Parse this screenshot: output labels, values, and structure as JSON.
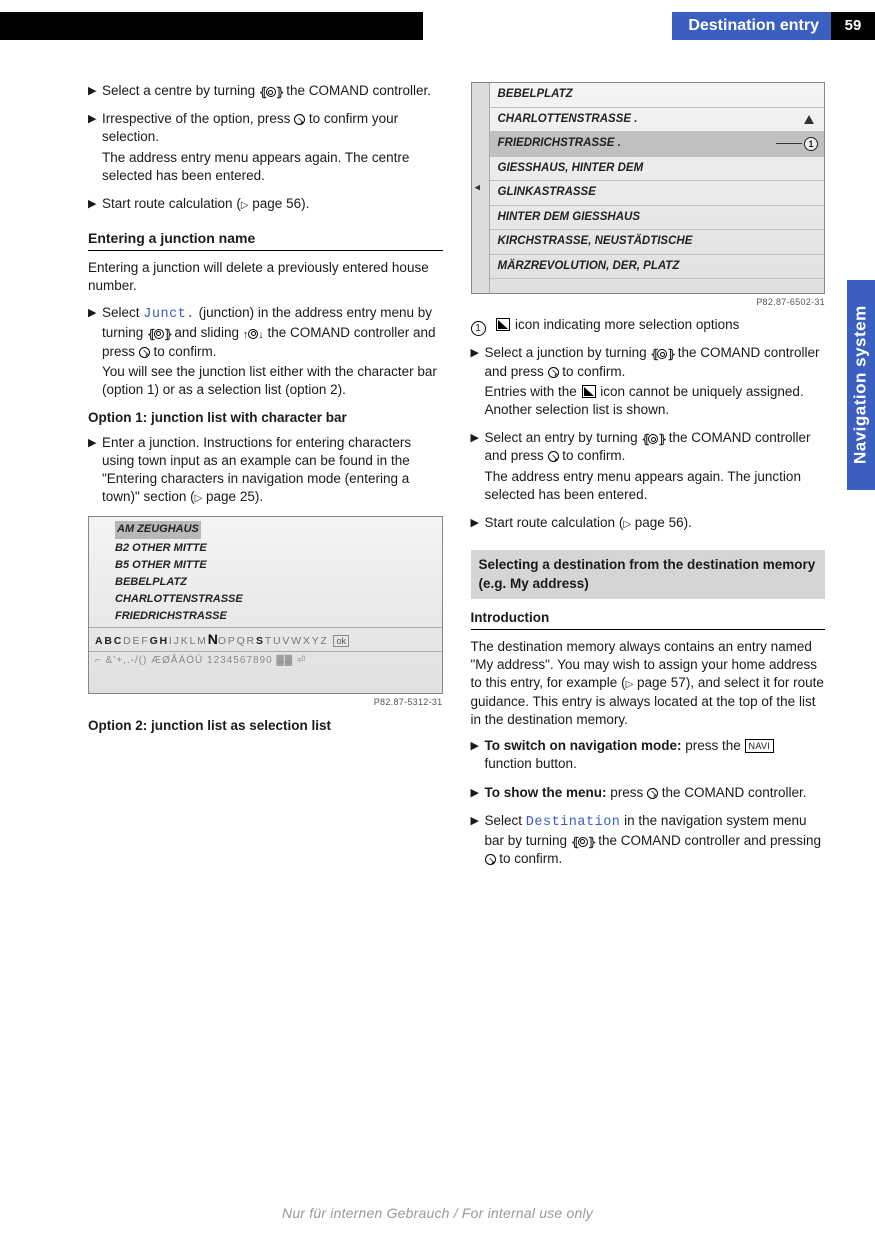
{
  "header": {
    "chapter": "Destination entry",
    "page_number": "59",
    "side_tab": "Navigation system"
  },
  "footer": "Nur für internen Gebrauch / For internal use only",
  "left": {
    "b1": "Select a centre by turning ",
    "b1_after": " the COMAND controller.",
    "b2a": "Irrespective of the option, press ",
    "b2b": " to confirm your selection.",
    "b2c": "The address entry menu appears again. The centre selected has been entered.",
    "b3": "Start route calculation (",
    "b3_pg": " page 56).",
    "h_junction": "Entering a junction name",
    "p_junction": "Entering a junction will delete a previously entered house number.",
    "j1a": "Select ",
    "j1_code": "Junct.",
    "j1b": " (junction) in the address entry menu by turning ",
    "j1c": " and sliding ",
    "j1d": " the COMAND controller and press ",
    "j1e": " to confirm.",
    "j1f": "You will see the junction list either with the character bar (option 1) or as a selection list (option 2).",
    "opt1": "Option 1: junction list with character bar",
    "j2a": "Enter a junction. Instructions for entering characters using town input as an example can be found in the \"Entering characters in navigation mode (entering a town)\" section (",
    "j2b": " page 25).",
    "ss1": {
      "rows": [
        "AM ZEUGHAUS",
        "B2 OTHER MITTE",
        "B5 OTHER MITTE",
        "BEBELPLATZ",
        "CHARLOTTENSTRASSE",
        "FRIEDRICHSTRASSE"
      ],
      "charbar_pre": "ABC",
      "charbar_mid1": "DEF",
      "charbar_g": "GH",
      "charbar_mid2": "IJKLM",
      "charbar_N": "N",
      "charbar_mid3": "OP",
      "charbar_qr": "QR",
      "charbar_s": "S",
      "charbar_tu": "TU",
      "charbar_rest": "VWXYZ",
      "charbar_ok": "ok",
      "inputrow": "⌐ &'+,.-/() ÆØÅÄÖÜ 1234567890 ▓▓ ⏎",
      "caption": "P82.87-5312-31"
    },
    "opt2": "Option 2: junction list as selection list"
  },
  "right": {
    "ss2": {
      "rows": [
        {
          "t": "BEBELPLATZ"
        },
        {
          "t": "CHARLOTTENSTRASSE .",
          "tri": true
        },
        {
          "t": "FRIEDRICHSTRASSE .",
          "hl": true,
          "badge": true
        },
        {
          "t": "GIESSHAUS, HINTER DEM"
        },
        {
          "t": "GLINKASTRASSE"
        },
        {
          "t": "HINTER DEM GIESSHAUS"
        },
        {
          "t": "KIRCHSTRASSE, NEUSTÄDTISCHE"
        },
        {
          "t": "MÄRZREVOLUTION, DER, PLATZ"
        }
      ],
      "caption": "P82.87-6502-31"
    },
    "legend1_num": "1",
    "legend1": " icon indicating more selection options",
    "r1a": "Select a junction by turning ",
    "r1b": " the COMAND controller and press ",
    "r1c": " to confirm.",
    "r1d": "Entries with the ",
    "r1e": " icon cannot be uniquely assigned. Another selection list is shown.",
    "r2a": "Select an entry by turning ",
    "r2b": " the COMAND controller and press ",
    "r2c": " to confirm.",
    "r2d": "The address entry menu appears again. The junction selected has been entered.",
    "r3a": "Start route calculation (",
    "r3b": " page 56).",
    "box": "Selecting a destination from the destination memory (e.g. My address)",
    "intro_h": "Introduction",
    "intro_p1": "The destination memory always contains an entry named \"My address\". You may wish to assign your home address to this entry, for example (",
    "intro_p1b": " page 57), and select it for route guidance. This entry is always located at the top of the list in the destination memory.",
    "n1a": "To switch on navigation mode:",
    "n1b": " press the ",
    "n1_key": "NAVI",
    "n1c": " function button.",
    "n2a": "To show the menu:",
    "n2b": " press ",
    "n2c": " the COMAND controller.",
    "n3a": "Select ",
    "n3_code": "Destination",
    "n3b": " in the navigation system menu bar by turning ",
    "n3c": " the COMAND controller and pressing ",
    "n3d": " to confirm."
  }
}
